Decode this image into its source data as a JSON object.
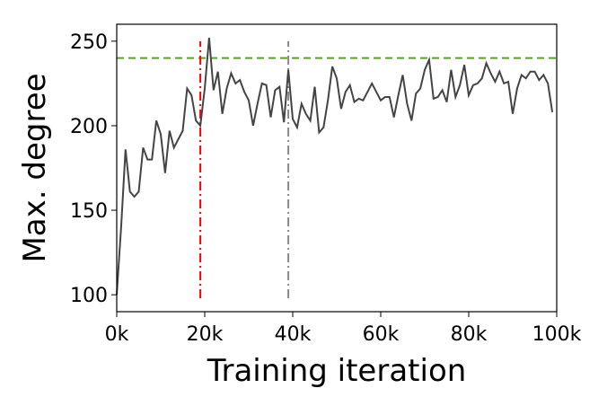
{
  "chart_data": {
    "type": "line",
    "xlabel": "Training iteration",
    "ylabel": "Max. degree",
    "x": [
      0,
      1000,
      2000,
      3000,
      4000,
      5000,
      6000,
      7000,
      8000,
      9000,
      10000,
      11000,
      12000,
      13000,
      14000,
      15000,
      16000,
      17000,
      18000,
      19000,
      20000,
      21000,
      22000,
      23000,
      24000,
      25000,
      26000,
      27000,
      28000,
      29000,
      30000,
      31000,
      32000,
      33000,
      34000,
      35000,
      36000,
      37000,
      38000,
      39000,
      40000,
      41000,
      42000,
      43000,
      44000,
      45000,
      46000,
      47000,
      48000,
      49000,
      50000,
      51000,
      52000,
      53000,
      54000,
      55000,
      56000,
      57000,
      58000,
      59000,
      60000,
      61000,
      62000,
      63000,
      64000,
      65000,
      66000,
      67000,
      68000,
      69000,
      70000,
      71000,
      72000,
      73000,
      74000,
      75000,
      76000,
      77000,
      78000,
      79000,
      80000,
      81000,
      82000,
      83000,
      84000,
      85000,
      86000,
      87000,
      88000,
      89000,
      90000,
      91000,
      92000,
      93000,
      94000,
      95000,
      96000,
      97000,
      98000,
      99000
    ],
    "series": [
      {
        "color": "#444444",
        "values": [
          100,
          140,
          186,
          161,
          158,
          161,
          187,
          180,
          180,
          203,
          195,
          172,
          197,
          187,
          192,
          197,
          222,
          218,
          203,
          200,
          222,
          252,
          221,
          232,
          207,
          222,
          231,
          225,
          227,
          220,
          215,
          200,
          213,
          225,
          224,
          205,
          221,
          223,
          202,
          233,
          204,
          199,
          213,
          207,
          203,
          223,
          196,
          199,
          215,
          235,
          228,
          210,
          220,
          224,
          214,
          216,
          215,
          220,
          225,
          220,
          215,
          217,
          217,
          205,
          218,
          230,
          213,
          203,
          219,
          222,
          233,
          239,
          216,
          217,
          221,
          214,
          233,
          217,
          224,
          236,
          218,
          224,
          225,
          228,
          237,
          231,
          226,
          232,
          225,
          226,
          207,
          222,
          230,
          228,
          232,
          232,
          227,
          230,
          225,
          208
        ]
      }
    ],
    "hlines": [
      {
        "y": 240,
        "color": "#5aa02c"
      }
    ],
    "vlines": [
      {
        "x": 19000,
        "ymin": 98,
        "ymax": 250,
        "color": "#ff0000"
      },
      {
        "x": 39000,
        "ymin": 98,
        "ymax": 250,
        "color": "#888888"
      }
    ],
    "xlim": [
      0,
      100000
    ],
    "ylim": [
      90,
      260
    ],
    "xticks": [
      {
        "value": 0,
        "label": "0k"
      },
      {
        "value": 20000,
        "label": "20k"
      },
      {
        "value": 40000,
        "label": "40k"
      },
      {
        "value": 60000,
        "label": "60k"
      },
      {
        "value": 80000,
        "label": "80k"
      },
      {
        "value": 100000,
        "label": "100k"
      }
    ],
    "yticks": [
      100,
      150,
      200,
      250
    ]
  }
}
